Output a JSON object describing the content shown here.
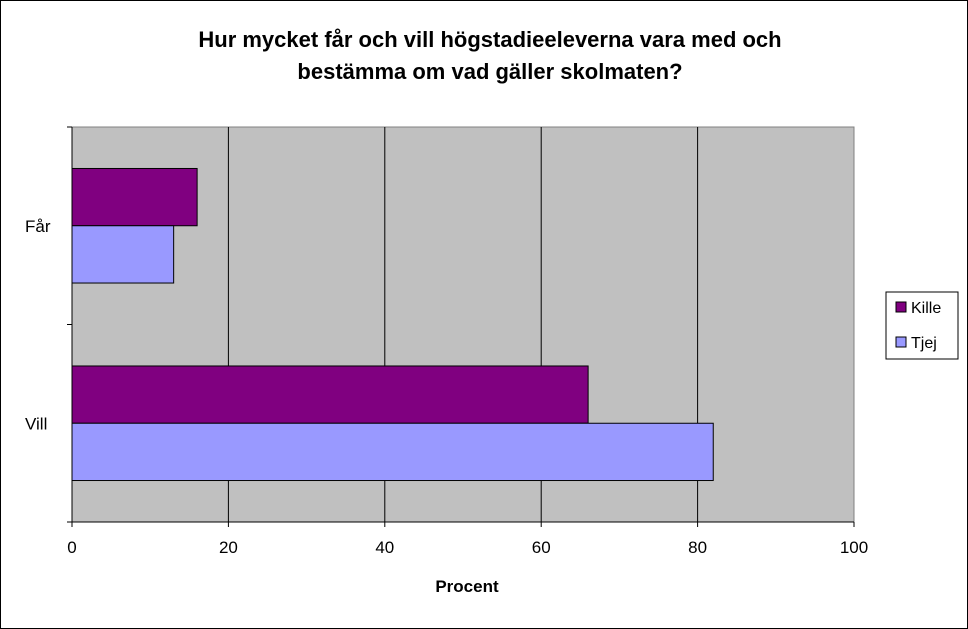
{
  "chart_data": {
    "type": "bar",
    "orientation": "horizontal",
    "title_lines": [
      "Hur mycket får och vill högstadieeleverna vara med och",
      "bestämma om vad gäller skolmaten?"
    ],
    "xlabel": "Procent",
    "ylabel": "",
    "categories": [
      "Får",
      "Vill"
    ],
    "series": [
      {
        "name": "Kille",
        "values": [
          16,
          66
        ],
        "color": "#800080"
      },
      {
        "name": "Tjej",
        "values": [
          13,
          82
        ],
        "color": "#9999FF"
      }
    ],
    "xlim": [
      0,
      100
    ],
    "xticks": [
      "0",
      "20",
      "40",
      "60",
      "80",
      "100"
    ],
    "grid": "vertical",
    "plot_background": "#C0C0C0",
    "legend_position": "right"
  }
}
